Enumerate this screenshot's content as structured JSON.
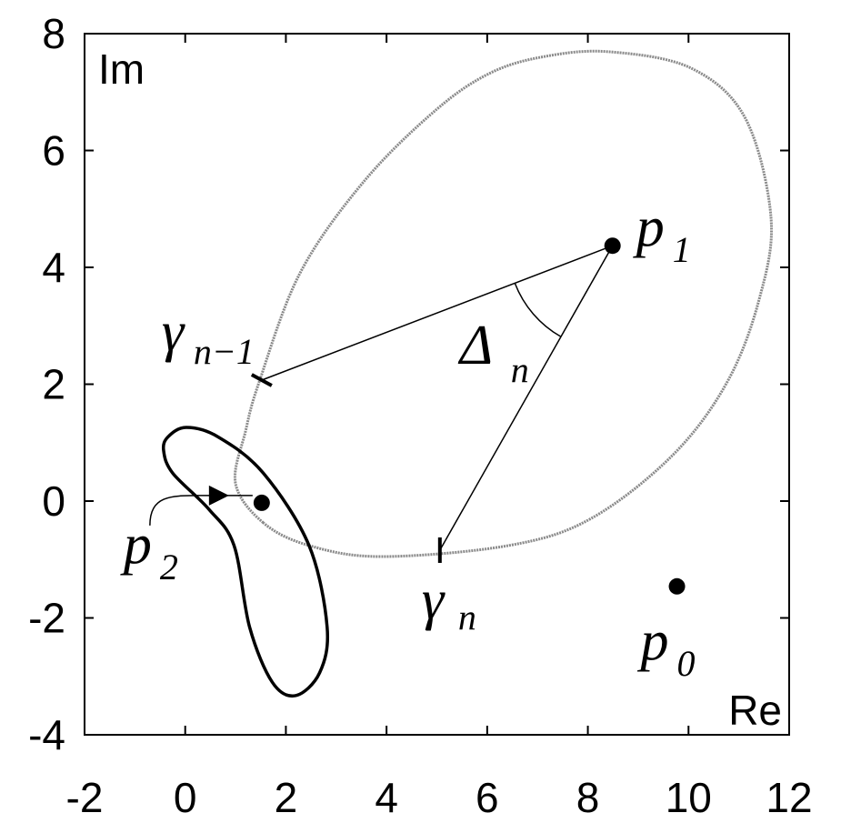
{
  "chart_data": {
    "type": "line",
    "xlabel": "Re",
    "ylabel": "Im",
    "xlim": [
      -2,
      12
    ],
    "ylim": [
      -4,
      8
    ],
    "xticks": [
      -2,
      0,
      2,
      4,
      6,
      8,
      10,
      12
    ],
    "yticks": [
      -4,
      -2,
      0,
      2,
      4,
      6,
      8
    ],
    "curves": [
      {
        "color": "#8a8a8a",
        "x": [
          1.55,
          1.0,
          1.2,
          1.47,
          2.28,
          3.55,
          4.99,
          6.07,
          7.15,
          8.42,
          10.05,
          11.13,
          11.64,
          11.4,
          10.77,
          9.69,
          8.06,
          6.43,
          3.9,
          2.46
        ],
        "y": [
          -0.37,
          0.3,
          1.2,
          2.04,
          3.9,
          5.47,
          6.7,
          7.33,
          7.61,
          7.69,
          7.41,
          6.55,
          4.84,
          3.44,
          2.04,
          0.79,
          -0.3,
          -0.76,
          -0.95,
          -0.76
        ]
      },
      {
        "color": "#000000",
        "x": [
          -0.34,
          0.02,
          0.65,
          1.55,
          2.46,
          2.82,
          2.67,
          2.19,
          1.73,
          1.28,
          0.97,
          0.47,
          -0.25,
          -0.43
        ],
        "y": [
          1.1,
          1.26,
          1.1,
          0.48,
          -0.76,
          -2.16,
          -2.94,
          -3.33,
          -3.1,
          -2.16,
          -0.76,
          -0.14,
          0.48,
          0.87
        ]
      }
    ],
    "points": [
      {
        "label": "p",
        "sub": "1",
        "x": 8.49,
        "y": 4.37
      },
      {
        "label": "p",
        "sub": "2",
        "x": 1.52,
        "y": -0.03
      },
      {
        "label": "p",
        "sub": "0",
        "x": 9.77,
        "y": -1.46
      }
    ],
    "markers": [
      {
        "label": "γ",
        "sub": "n−1",
        "x": 1.52,
        "y": 2.07
      },
      {
        "label": "γ",
        "sub": "n",
        "x": 5.06,
        "y": -0.84
      }
    ],
    "angle": {
      "label": "Δ",
      "sub": "n"
    }
  }
}
